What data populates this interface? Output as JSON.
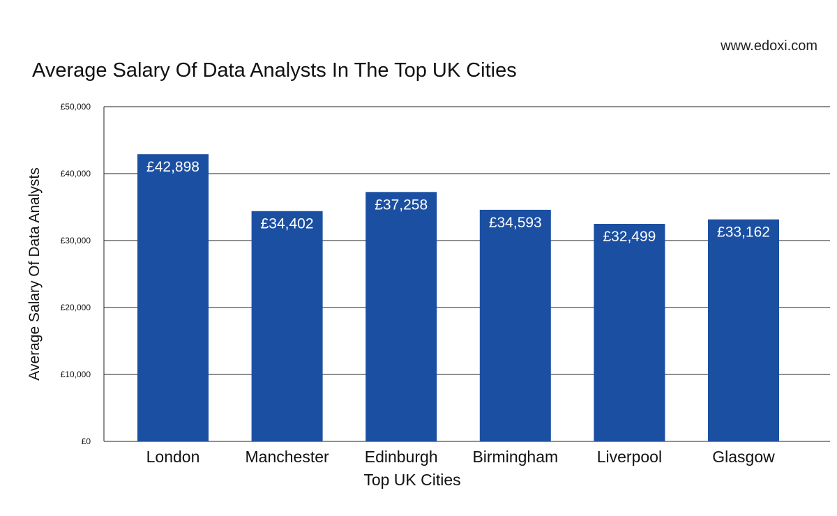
{
  "source": "www.edoxi.com",
  "colors": {
    "bar": "#1b4fa2",
    "grid": "#222222",
    "text": "#111111",
    "bar_label": "#ffffff"
  },
  "chart_data": {
    "type": "bar",
    "title": "Average Salary Of Data Analysts In The Top UK Cities",
    "xlabel": "Top UK Cities",
    "ylabel": "Average Salary Of Data Analysts",
    "categories": [
      "London",
      "Manchester",
      "Edinburgh",
      "Birmingham",
      "Liverpool",
      "Glasgow"
    ],
    "values": [
      42898,
      34402,
      37258,
      34593,
      32499,
      33162
    ],
    "value_labels": [
      "£42,898",
      "£34,402",
      "£37,258",
      "£34,593",
      "£32,499",
      "£33,162"
    ],
    "ylim": [
      0,
      50000
    ],
    "yticks": [
      0,
      10000,
      20000,
      30000,
      40000,
      50000
    ],
    "ytick_labels": [
      "£0",
      "£10,000",
      "£20,000",
      "£30,000",
      "£40,000",
      "£50,000"
    ],
    "grid": true,
    "legend": "none"
  }
}
